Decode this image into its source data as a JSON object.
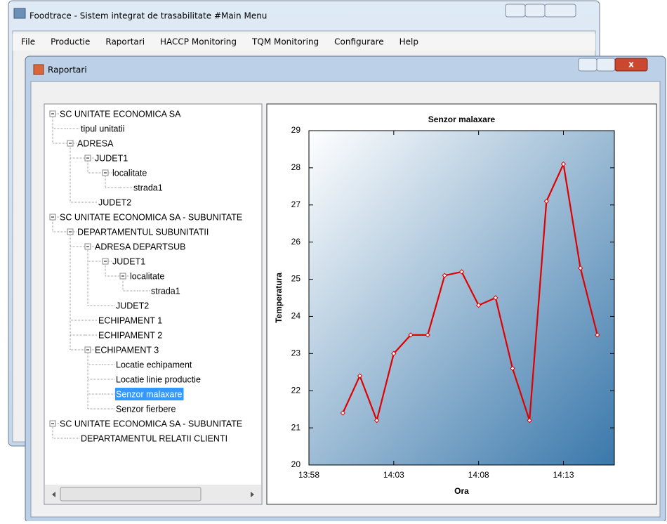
{
  "windows": {
    "main": {
      "title": "Foodtrace - Sistem integrat de trasabilitate #Main Menu",
      "menu": [
        "File",
        "Productie",
        "Raportari",
        "HACCP Monitoring",
        "TQM Monitoring",
        "Configurare",
        "Help"
      ]
    },
    "report": {
      "title": "Raportari"
    }
  },
  "tree": {
    "nodes": [
      {
        "label": "SC UNITATE ECONOMICA SA",
        "level": 0,
        "expandable": true
      },
      {
        "label": "tipul unitatii",
        "level": 1,
        "expandable": false
      },
      {
        "label": "ADRESA",
        "level": 1,
        "expandable": true
      },
      {
        "label": "JUDET1",
        "level": 2,
        "expandable": true
      },
      {
        "label": "localitate",
        "level": 3,
        "expandable": true
      },
      {
        "label": "strada1",
        "level": 4,
        "expandable": false
      },
      {
        "label": "JUDET2",
        "level": 2,
        "expandable": false
      },
      {
        "label": "SC UNITATE ECONOMICA SA - SUBUNITATE",
        "level": 0,
        "expandable": true
      },
      {
        "label": "DEPARTAMENTUL SUBUNITATII",
        "level": 1,
        "expandable": true
      },
      {
        "label": "ADRESA DEPARTSUB",
        "level": 2,
        "expandable": true
      },
      {
        "label": "JUDET1",
        "level": 3,
        "expandable": true
      },
      {
        "label": "localitate",
        "level": 4,
        "expandable": true
      },
      {
        "label": "strada1",
        "level": 5,
        "expandable": false
      },
      {
        "label": "JUDET2",
        "level": 3,
        "expandable": false
      },
      {
        "label": "ECHIPAMENT 1",
        "level": 2,
        "expandable": false
      },
      {
        "label": "ECHIPAMENT 2",
        "level": 2,
        "expandable": false
      },
      {
        "label": "ECHIPAMENT 3",
        "level": 2,
        "expandable": true
      },
      {
        "label": "Locatie echipament",
        "level": 3,
        "expandable": false
      },
      {
        "label": "Locatie linie productie",
        "level": 3,
        "expandable": false
      },
      {
        "label": "Senzor malaxare",
        "level": 3,
        "expandable": false,
        "selected": true
      },
      {
        "label": "Senzor fierbere",
        "level": 3,
        "expandable": false
      },
      {
        "label": "SC UNITATE ECONOMICA SA - SUBUNITATE",
        "level": 0,
        "expandable": true
      },
      {
        "label": "DEPARTAMENTUL RELATII CLIENTI",
        "level": 1,
        "expandable": false
      }
    ]
  },
  "chart_data": {
    "type": "line",
    "title": "Senzor malaxare",
    "x_label": "Ora",
    "y_label": "Temperatura",
    "x": [
      "14:00",
      "14:01",
      "14:02",
      "14:03",
      "14:04",
      "14:05",
      "14:06",
      "14:07",
      "14:08",
      "14:09",
      "14:10",
      "14:11",
      "14:12",
      "14:13",
      "14:14",
      "14:15"
    ],
    "values": [
      21.4,
      22.4,
      21.2,
      23.0,
      23.5,
      23.5,
      25.1,
      25.2,
      24.3,
      24.5,
      22.6,
      21.2,
      27.1,
      28.1,
      25.3,
      23.5
    ],
    "color": "#e00000",
    "xlim": [
      "13:58",
      "14:16"
    ],
    "xticks": [
      "13:58",
      "14:03",
      "14:08",
      "14:13"
    ],
    "ylim": [
      20,
      29
    ],
    "yticks": [
      20,
      21,
      22,
      23,
      24,
      25,
      26,
      27,
      28,
      29
    ]
  }
}
